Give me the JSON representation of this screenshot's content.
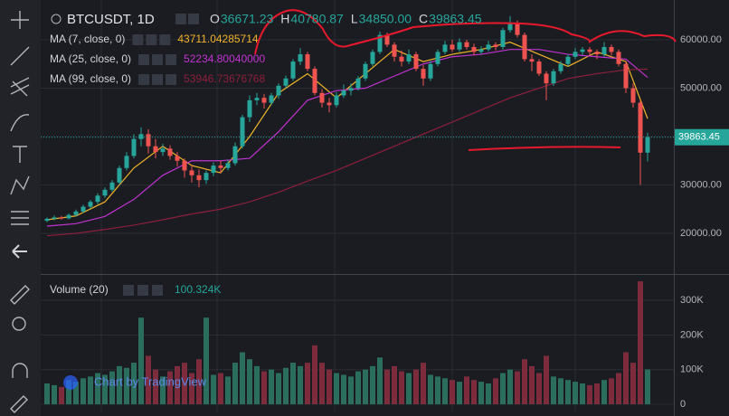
{
  "chart_data": {
    "type": "candlestick",
    "title": "BTCUSDT, 1D",
    "header": [
      {
        "label": "O",
        "value": "36671.23"
      },
      {
        "label": "H",
        "value": "40780.87"
      },
      {
        "label": "L",
        "value": "34850.00"
      },
      {
        "label": "C",
        "value": "39863.45"
      }
    ],
    "up_color": "#26a69a",
    "down_color": "#ef5350",
    "xlim": [
      -0.875,
      86.625
    ],
    "ylim": [
      11776,
      68224
    ],
    "yticks": [
      {
        "value": 20000,
        "label": "20000.00"
      },
      {
        "value": 30000,
        "label": "30000.00"
      },
      {
        "value": 40000,
        "label": "40000.00"
      },
      {
        "value": 50000,
        "label": "50000.00"
      },
      {
        "value": 60000,
        "label": "60000.00"
      }
    ],
    "grid": true,
    "candles": [
      [
        22600,
        23300,
        22300,
        23000
      ],
      [
        23000,
        23700,
        22700,
        23300
      ],
      [
        23300,
        23600,
        22800,
        23100
      ],
      [
        23100,
        24100,
        22900,
        23800
      ],
      [
        23800,
        24900,
        23500,
        24500
      ],
      [
        24500,
        25900,
        24200,
        25500
      ],
      [
        25500,
        26900,
        25100,
        26500
      ],
      [
        26500,
        28300,
        26000,
        27800
      ],
      [
        27800,
        29500,
        27300,
        29000
      ],
      [
        29000,
        31000,
        28600,
        30500
      ],
      [
        30500,
        34000,
        30000,
        33500
      ],
      [
        33500,
        36800,
        33000,
        36000
      ],
      [
        36000,
        40500,
        35500,
        39500
      ],
      [
        39500,
        41900,
        38000,
        40500
      ],
      [
        40500,
        41500,
        36500,
        38000
      ],
      [
        38000,
        39500,
        35500,
        36800
      ],
      [
        36800,
        38500,
        36000,
        37500
      ],
      [
        37500,
        38200,
        35200,
        36000
      ],
      [
        36000,
        36800,
        33800,
        35000
      ],
      [
        35000,
        35500,
        31500,
        33000
      ],
      [
        33000,
        34000,
        30500,
        32000
      ],
      [
        32000,
        33200,
        29500,
        31000
      ],
      [
        31000,
        33000,
        30200,
        32500
      ],
      [
        32500,
        34700,
        31800,
        34000
      ],
      [
        34000,
        35000,
        32500,
        33500
      ],
      [
        33500,
        35200,
        33000,
        34500
      ],
      [
        34500,
        38800,
        34000,
        38000
      ],
      [
        38000,
        44500,
        37500,
        44000
      ],
      [
        44000,
        48500,
        43000,
        47500
      ],
      [
        47500,
        49000,
        46500,
        48000
      ],
      [
        48000,
        48800,
        45800,
        47000
      ],
      [
        47000,
        49000,
        46500,
        48500
      ],
      [
        48500,
        51000,
        47800,
        50500
      ],
      [
        50500,
        52600,
        50000,
        52000
      ],
      [
        52000,
        56000,
        51500,
        55500
      ],
      [
        55500,
        58300,
        54800,
        57000
      ],
      [
        57000,
        57500,
        53500,
        54000
      ],
      [
        54000,
        54500,
        48500,
        49000
      ],
      [
        49000,
        49800,
        46000,
        47000
      ],
      [
        47000,
        48000,
        45000,
        46500
      ],
      [
        46500,
        49200,
        46000,
        48500
      ],
      [
        48500,
        50800,
        48000,
        49500
      ],
      [
        49500,
        51000,
        48500,
        50000
      ],
      [
        50000,
        52500,
        49500,
        52000
      ],
      [
        52000,
        55500,
        51500,
        55000
      ],
      [
        55000,
        58000,
        54500,
        57500
      ],
      [
        57500,
        61700,
        57000,
        61000
      ],
      [
        61000,
        61500,
        58500,
        59000
      ],
      [
        59000,
        59500,
        55500,
        56500
      ],
      [
        56500,
        57800,
        54500,
        55500
      ],
      [
        55500,
        58000,
        55000,
        57000
      ],
      [
        57000,
        57500,
        53500,
        54000
      ],
      [
        54000,
        54800,
        50500,
        52000
      ],
      [
        52000,
        55600,
        51500,
        55000
      ],
      [
        55000,
        58000,
        54500,
        57500
      ],
      [
        57500,
        59800,
        57000,
        59000
      ],
      [
        59000,
        60000,
        57500,
        58000
      ],
      [
        58000,
        60300,
        57500,
        59500
      ],
      [
        59500,
        60000,
        58000,
        58500
      ],
      [
        58500,
        59200,
        56800,
        57500
      ],
      [
        57500,
        58700,
        57000,
        58000
      ],
      [
        58000,
        59800,
        57600,
        59000
      ],
      [
        59000,
        59500,
        57800,
        58500
      ],
      [
        58500,
        62500,
        58000,
        62000
      ],
      [
        62000,
        64900,
        61500,
        63500
      ],
      [
        63500,
        64000,
        60500,
        61000
      ],
      [
        61000,
        61500,
        55500,
        56000
      ],
      [
        56000,
        57000,
        53500,
        55500
      ],
      [
        55500,
        56000,
        52500,
        53000
      ],
      [
        53000,
        53500,
        47500,
        51000
      ],
      [
        51000,
        54000,
        50500,
        53500
      ],
      [
        53500,
        55600,
        53000,
        55000
      ],
      [
        55000,
        57000,
        54500,
        56500
      ],
      [
        56500,
        58300,
        56000,
        57500
      ],
      [
        57500,
        58500,
        56800,
        58000
      ],
      [
        58000,
        58500,
        56800,
        57500
      ],
      [
        57500,
        58000,
        56000,
        57000
      ],
      [
        57000,
        59500,
        56500,
        58500
      ],
      [
        58500,
        59000,
        56800,
        57500
      ],
      [
        57500,
        58000,
        54500,
        55000
      ],
      [
        55000,
        55500,
        49000,
        50000
      ],
      [
        50000,
        51000,
        46000,
        47000
      ],
      [
        47000,
        47500,
        30000,
        36671.23
      ],
      [
        36671.23,
        40780.87,
        34850,
        39863.45
      ]
    ],
    "ma_x": [
      0,
      4,
      8,
      12,
      16,
      20,
      24,
      28,
      32,
      36,
      40,
      44,
      48,
      52,
      56,
      60,
      64,
      68,
      72,
      76,
      80,
      83
    ],
    "series": [
      {
        "name": "MA (7, close, 0)",
        "color": "#f0b429",
        "last_label": "43711.04285714",
        "values": [
          22800,
          23600,
          26500,
          33500,
          38000,
          34000,
          32500,
          40000,
          49000,
          53000,
          48000,
          53000,
          58000,
          55500,
          57000,
          58000,
          59500,
          57000,
          54500,
          57500,
          55500,
          43711.04
        ]
      },
      {
        "name": "MA (25, close, 0)",
        "color": "#c033d0",
        "last_label": "52234.80040000",
        "values": [
          21500,
          22000,
          23500,
          27000,
          32000,
          35000,
          35000,
          35500,
          41000,
          47500,
          49500,
          50000,
          52500,
          55000,
          56500,
          57000,
          58000,
          58000,
          57000,
          56500,
          56000,
          52234.8
        ]
      },
      {
        "name": "MA (99, close, 0)",
        "color": "#8c1f3a",
        "last_label": "53946.73676768",
        "values": [
          19500,
          20000,
          20800,
          21700,
          22800,
          24000,
          25000,
          26500,
          28500,
          30800,
          33000,
          35500,
          38000,
          40500,
          43000,
          45500,
          48000,
          50000,
          52000,
          53000,
          53800,
          53946.74
        ]
      }
    ],
    "volume": {
      "name": "Volume (20)",
      "last_label": "100.324K",
      "up_color": "#2b6e5e",
      "down_color": "#7d2c3d",
      "ylim": [
        -20.9,
        370.8
      ],
      "yticks": [
        0,
        {
          "value": 100,
          "label": "100K"
        },
        {
          "value": 200,
          "label": "200K"
        },
        {
          "value": 300,
          "label": "300K"
        }
      ],
      "values": [
        60,
        55,
        50,
        70,
        65,
        75,
        80,
        90,
        85,
        95,
        110,
        105,
        120,
        250,
        140,
        100,
        80,
        95,
        110,
        120,
        90,
        130,
        250,
        85,
        90,
        80,
        120,
        150,
        130,
        110,
        95,
        100,
        90,
        105,
        120,
        110,
        120,
        170,
        120,
        100,
        90,
        85,
        80,
        95,
        100,
        110,
        135,
        100,
        110,
        95,
        90,
        100,
        120,
        85,
        80,
        75,
        70,
        65,
        80,
        70,
        65,
        60,
        75,
        90,
        100,
        95,
        130,
        110,
        90,
        140,
        80,
        75,
        70,
        65,
        60,
        55,
        60,
        70,
        75,
        90,
        150,
        120,
        355,
        100.324
      ]
    },
    "credit": "Chart by TradingView"
  }
}
